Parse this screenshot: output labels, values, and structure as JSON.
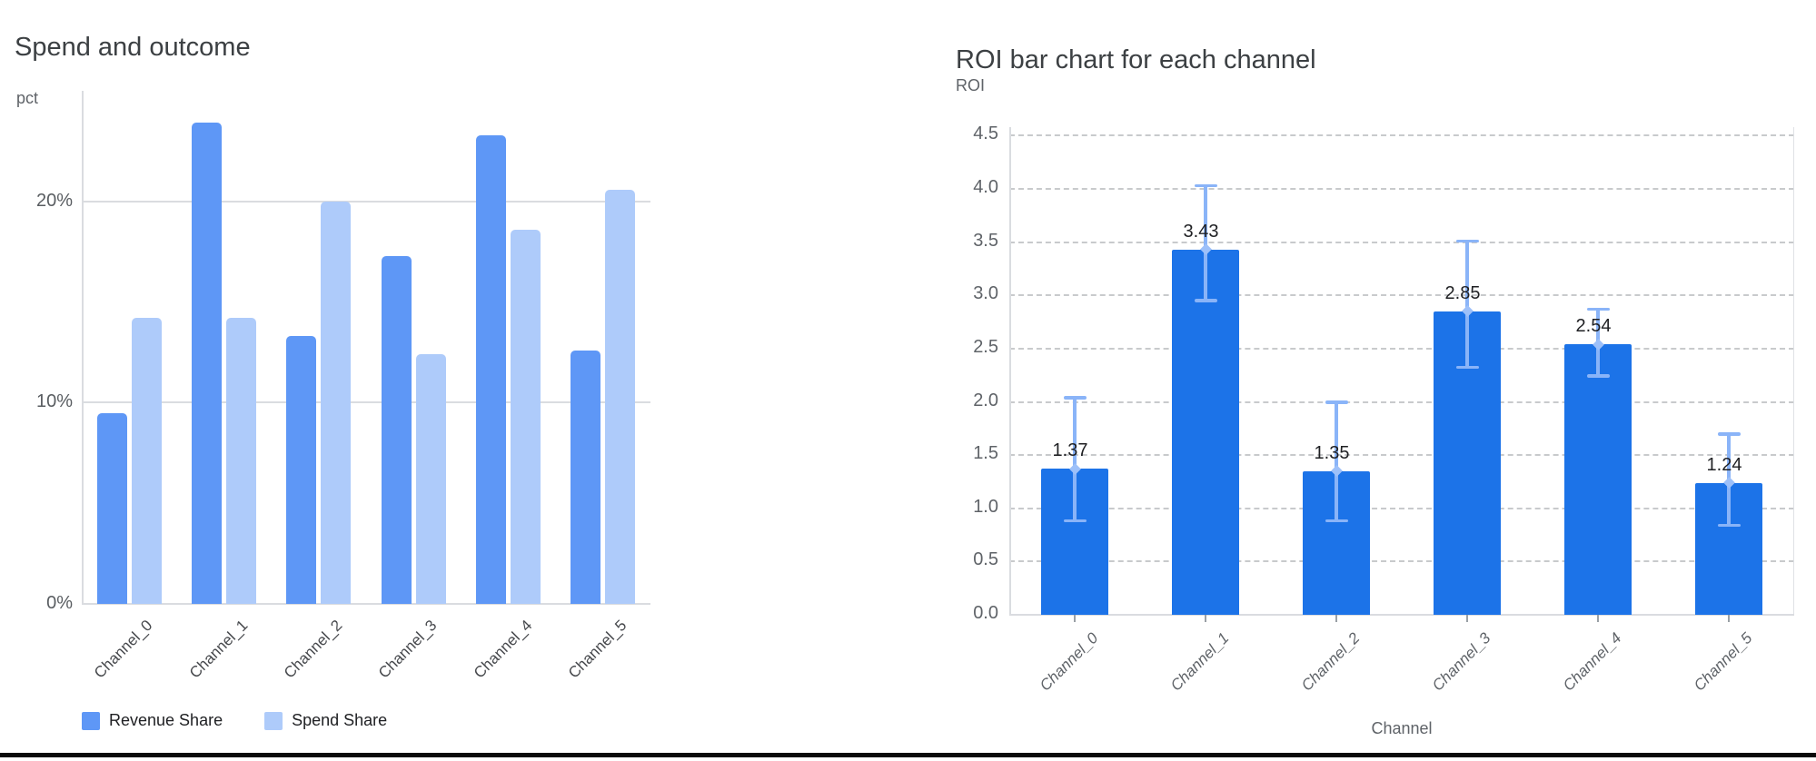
{
  "palette": {
    "revenue_bar": "#5e97f6",
    "spend_bar": "#aecbfa",
    "roi_bar": "#1c73e8",
    "error_bar": "#8ab4f8",
    "grid_solid": "#dadce0",
    "grid_dashed": "#c8cacc",
    "title_text": "#3c4043",
    "bottom_rule": "#0a0a0a"
  },
  "chart_data": [
    {
      "id": "spend-and-outcome",
      "type": "bar",
      "title": "Spend and outcome",
      "ylabel": "pct",
      "xlabel": "",
      "categories": [
        "Channel_0",
        "Channel_1",
        "Channel_2",
        "Channel_3",
        "Channel_4",
        "Channel_5"
      ],
      "series": [
        {
          "name": "Revenue Share",
          "values": [
            9.5,
            23.9,
            13.3,
            17.3,
            23.3,
            12.6
          ]
        },
        {
          "name": "Spend Share",
          "values": [
            14.2,
            14.2,
            20.0,
            12.4,
            18.6,
            20.6
          ]
        }
      ],
      "yticks": [
        {
          "v": 0,
          "label": "0%"
        },
        {
          "v": 10,
          "label": "10%"
        },
        {
          "v": 20,
          "label": "20%"
        }
      ],
      "ylim": [
        0,
        25.5
      ],
      "grid": "solid-horizontal",
      "legend_position": "bottom-left"
    },
    {
      "id": "roi-by-channel",
      "type": "bar",
      "title": "ROI bar chart for each channel",
      "ylabel": "ROI",
      "xlabel": "Channel",
      "categories": [
        "Channel_0",
        "Channel_1",
        "Channel_2",
        "Channel_3",
        "Channel_4",
        "Channel_5"
      ],
      "series": [
        {
          "name": "ROI",
          "values": [
            1.37,
            3.43,
            1.35,
            2.85,
            2.54,
            1.24
          ]
        }
      ],
      "value_labels": [
        "1.37",
        "3.43",
        "1.35",
        "2.85",
        "2.54",
        "1.24"
      ],
      "error_bars": {
        "low": [
          0.88,
          2.95,
          0.88,
          2.32,
          2.24,
          0.84
        ],
        "high": [
          2.04,
          4.03,
          2.0,
          3.51,
          2.87,
          1.7
        ]
      },
      "yticks": [
        {
          "v": 0.0,
          "label": "0.0"
        },
        {
          "v": 0.5,
          "label": "0.5"
        },
        {
          "v": 1.0,
          "label": "1.0"
        },
        {
          "v": 1.5,
          "label": "1.5"
        },
        {
          "v": 2.0,
          "label": "2.0"
        },
        {
          "v": 2.5,
          "label": "2.5"
        },
        {
          "v": 3.0,
          "label": "3.0"
        },
        {
          "v": 3.5,
          "label": "3.5"
        },
        {
          "v": 4.0,
          "label": "4.0"
        },
        {
          "v": 4.5,
          "label": "4.5"
        }
      ],
      "ylim": [
        0,
        4.58
      ],
      "grid": "dashed-horizontal",
      "legend_position": "none"
    }
  ]
}
